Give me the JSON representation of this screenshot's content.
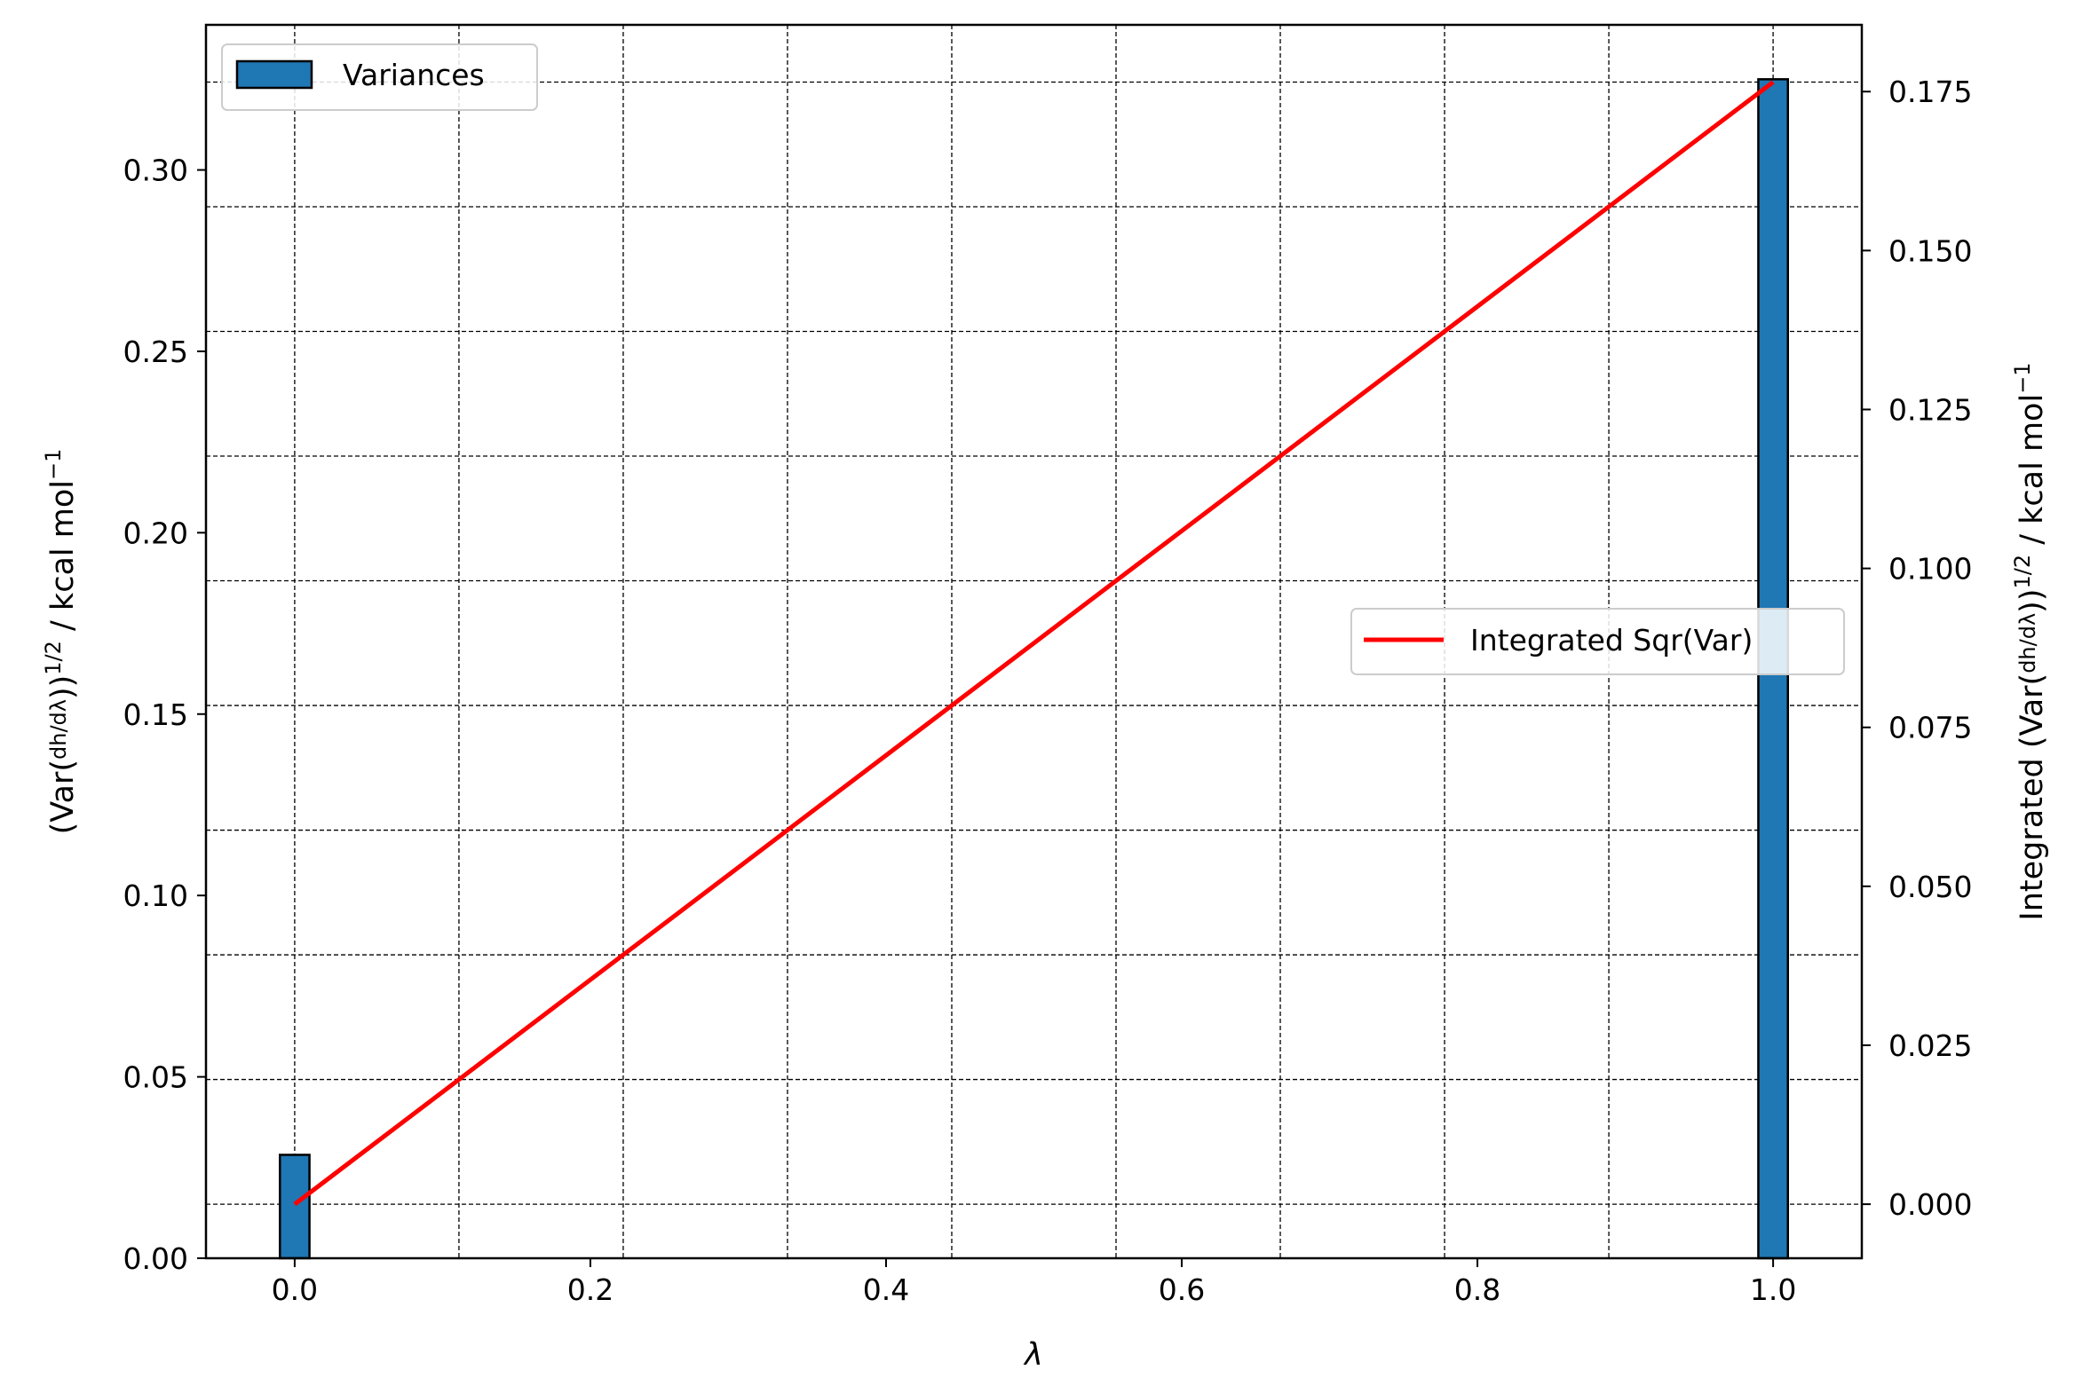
{
  "chart_data": {
    "type": "bar",
    "xlabel": "λ",
    "ylabel_left": "(Var(dh/dλ))^1/2 / kcal mol−1",
    "ylabel_right": "Integrated (Var(dh/dλ))^1/2 / kcal mol−1",
    "xlim": [
      -0.06,
      1.06
    ],
    "ylim_left": [
      0,
      0.34
    ],
    "ylim_right": [
      -0.0085,
      0.1855
    ],
    "x_ticks": [
      "0.0",
      "0.2",
      "0.4",
      "0.6",
      "0.8",
      "1.0"
    ],
    "y_left_ticks": [
      "0.00",
      "0.05",
      "0.10",
      "0.15",
      "0.20",
      "0.25",
      "0.30"
    ],
    "y_right_ticks": [
      "0.000",
      "0.025",
      "0.050",
      "0.075",
      "0.100",
      "0.125",
      "0.150",
      "0.175"
    ],
    "grid": true,
    "series": [
      {
        "name": "Variances",
        "type": "bar",
        "axis": "left",
        "color": "#1f77b4",
        "x": [
          0.0,
          1.0
        ],
        "values": [
          0.0285,
          0.325
        ]
      },
      {
        "name": "Integrated Sqr(Var)",
        "type": "line",
        "axis": "right",
        "color": "#ff0000",
        "x": [
          0.0,
          1.0
        ],
        "values": [
          0.0,
          0.1765
        ]
      }
    ],
    "legends": [
      {
        "label": "Variances",
        "placement": "upper-left"
      },
      {
        "label": "Integrated Sqr(Var)",
        "placement": "center-right"
      }
    ]
  }
}
